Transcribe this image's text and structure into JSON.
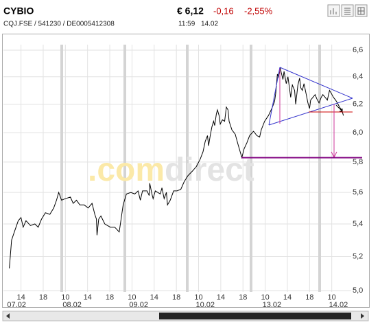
{
  "header": {
    "title": "CYBIO",
    "subtitle": "CQJ.FSE / 541230 / DE0005412308",
    "price": "€ 6,12",
    "change": "-0,16",
    "change_pct": "-2,55%",
    "time": "11:59",
    "date": "14.02"
  },
  "chart_data": {
    "type": "line",
    "watermark": [
      ".com",
      "direct"
    ],
    "color": "#000000",
    "x": [
      3.9,
      4.3,
      4.8,
      5.5,
      6.0,
      6.4,
      6.9,
      7.7,
      8.5,
      9.1,
      9.7,
      10.4,
      11.2,
      11.9,
      12.4,
      12.8,
      13.3,
      14.0,
      14.9,
      15.4,
      16.0,
      16.6,
      17.4,
      18.1,
      18.8,
      19.3,
      19.6,
      19.7,
      20.0,
      20.4,
      21.1,
      22.1,
      22.9,
      23.7,
      24.0,
      24.4,
      25.0,
      25.8,
      26.5,
      27.1,
      27.5,
      27.9,
      28.7,
      29.1,
      29.2,
      29.6,
      29.8,
      30.2,
      31.1,
      31.4,
      31.8,
      32.2,
      32.4,
      32.9,
      33.5,
      34.1,
      34.8,
      35.4,
      36.1,
      36.9,
      37.6,
      38.3,
      38.8,
      39.2,
      39.6,
      39.8,
      40.1,
      40.4,
      40.7,
      40.9,
      41.2,
      41.4,
      41.7,
      41.9,
      42.3,
      42.7,
      43.0,
      43.3,
      43.5,
      44.0,
      44.6,
      45.1,
      45.8,
      46.2,
      46.7,
      47.2,
      47.9,
      48.5,
      49.0,
      49.3,
      49.9,
      50.6,
      51.2,
      51.7,
      51.9,
      52.2,
      52.4,
      52.7,
      52.9,
      53.2,
      53.4,
      53.8,
      54.1,
      54.4,
      54.6,
      54.9,
      55.3,
      55.5,
      55.9,
      56.2,
      56.4,
      56.7,
      57.0,
      57.4,
      57.7,
      58.0,
      58.2,
      58.6,
      59.0,
      59.3,
      59.7,
      60.1,
      60.4,
      60.8,
      61.2,
      61.6,
      61.9,
      62.3,
      62.7,
      63.0,
      63.4,
      63.8,
      64.1
    ],
    "values": [
      5.13,
      5.3,
      5.35,
      5.42,
      5.44,
      5.38,
      5.42,
      5.39,
      5.4,
      5.38,
      5.43,
      5.47,
      5.46,
      5.5,
      5.55,
      5.6,
      5.55,
      5.56,
      5.57,
      5.53,
      5.55,
      5.52,
      5.52,
      5.5,
      5.53,
      5.46,
      5.43,
      5.33,
      5.43,
      5.45,
      5.4,
      5.38,
      5.38,
      5.35,
      5.42,
      5.52,
      5.59,
      5.6,
      5.59,
      5.61,
      5.55,
      5.61,
      5.61,
      5.58,
      5.66,
      5.59,
      5.56,
      5.61,
      5.59,
      5.63,
      5.56,
      5.6,
      5.52,
      5.55,
      5.61,
      5.61,
      5.62,
      5.67,
      5.71,
      5.74,
      5.77,
      5.82,
      5.87,
      5.94,
      5.98,
      5.91,
      5.98,
      6.04,
      6.08,
      6.05,
      6.13,
      6.16,
      6.12,
      6.06,
      6.09,
      6.08,
      6.18,
      6.16,
      6.08,
      6.02,
      5.99,
      5.92,
      5.83,
      5.89,
      5.93,
      5.98,
      6.01,
      5.98,
      5.97,
      6.02,
      6.08,
      6.12,
      6.17,
      6.22,
      6.28,
      6.42,
      6.4,
      6.47,
      6.43,
      6.38,
      6.44,
      6.35,
      6.4,
      6.31,
      6.25,
      6.34,
      6.3,
      6.2,
      6.34,
      6.39,
      6.32,
      6.3,
      6.35,
      6.27,
      6.21,
      6.17,
      6.23,
      6.25,
      6.27,
      6.24,
      6.21,
      6.25,
      6.27,
      6.25,
      6.23,
      6.3,
      6.28,
      6.25,
      6.23,
      6.21,
      6.18,
      6.16,
      6.12
    ],
    "xlim": [
      3.7,
      65.5
    ],
    "xticks": [
      {
        "value": 6,
        "label": "14"
      },
      {
        "value": 10,
        "label": "18"
      },
      {
        "value": 14,
        "label": "10"
      },
      {
        "value": 18,
        "label": "14"
      },
      {
        "value": 22,
        "label": "18"
      },
      {
        "value": 26,
        "label": "10"
      },
      {
        "value": 30,
        "label": "14"
      },
      {
        "value": 34,
        "label": "18"
      },
      {
        "value": 38,
        "label": "10"
      },
      {
        "value": 42,
        "label": "14"
      },
      {
        "value": 46,
        "label": "18"
      },
      {
        "value": 50,
        "label": "10"
      },
      {
        "value": 54,
        "label": "14"
      },
      {
        "value": 58,
        "label": "18"
      },
      {
        "value": 62,
        "label": "10"
      }
    ],
    "date_labels": [
      {
        "value": 4,
        "label": "07.02"
      },
      {
        "value": 14,
        "label": "08.02"
      },
      {
        "value": 26,
        "label": "09.02"
      },
      {
        "value": 38,
        "label": "10.02"
      },
      {
        "value": 50,
        "label": "13.02"
      },
      {
        "value": 62,
        "label": "14.02"
      }
    ],
    "ylim": [
      5,
      6.6
    ],
    "yticks": [
      {
        "value": 5,
        "label": "5,0"
      },
      {
        "value": 5.2,
        "label": "5,2"
      },
      {
        "value": 5.4,
        "label": "5,4"
      },
      {
        "value": 5.6,
        "label": "5,6"
      },
      {
        "value": 5.8,
        "label": "5,8"
      },
      {
        "value": 6,
        "label": "6,0"
      },
      {
        "value": 6.2,
        "label": "6,2"
      },
      {
        "value": 6.4,
        "label": "6,4"
      },
      {
        "value": 6.6,
        "label": "6,6"
      }
    ],
    "ylog": true,
    "grid": true
  }
}
